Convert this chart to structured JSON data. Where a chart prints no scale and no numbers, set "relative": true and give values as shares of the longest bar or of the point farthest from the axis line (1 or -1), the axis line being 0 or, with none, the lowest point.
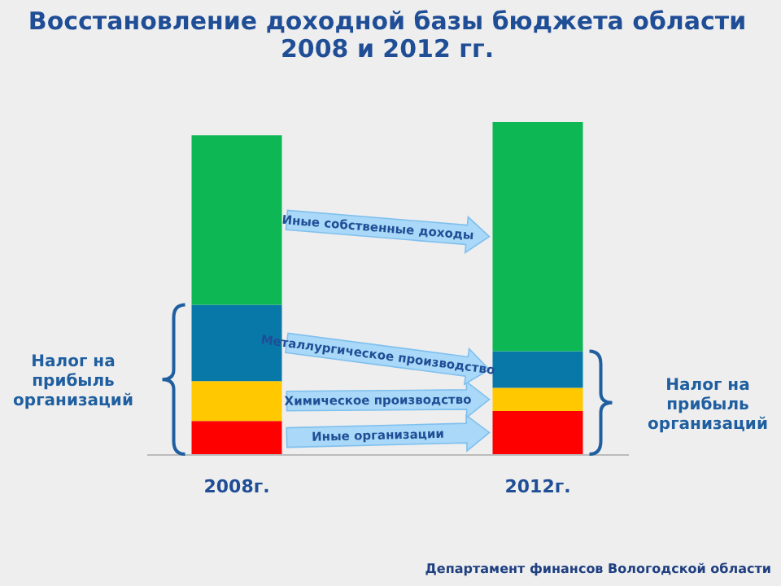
{
  "chart_data": {
    "type": "bar",
    "title": "Восстановление доходной базы бюджета области\n2008 и 2012 гг.",
    "categories": [
      "2008г.",
      "2012г."
    ],
    "stacked": true,
    "relative": true,
    "legend": false,
    "grid": false,
    "series": [
      {
        "name": "Иные организации",
        "color": "#ff0000",
        "values": [
          0.1,
          0.13
        ]
      },
      {
        "name": "Химическое производство",
        "color": "#ffc800",
        "values": [
          0.12,
          0.07
        ]
      },
      {
        "name": "Металлургическое производство",
        "color": "#0878a8",
        "values": [
          0.23,
          0.11
        ]
      },
      {
        "name": "Иные собственные доходы",
        "color": "#0cb754",
        "values": [
          0.51,
          0.69
        ]
      }
    ],
    "annotations": [
      "Налог на\nприбыль\nорганизаций",
      "Налог на\nприбыль\nорганизаций",
      "Департамент финансов Вологодской области"
    ]
  }
}
